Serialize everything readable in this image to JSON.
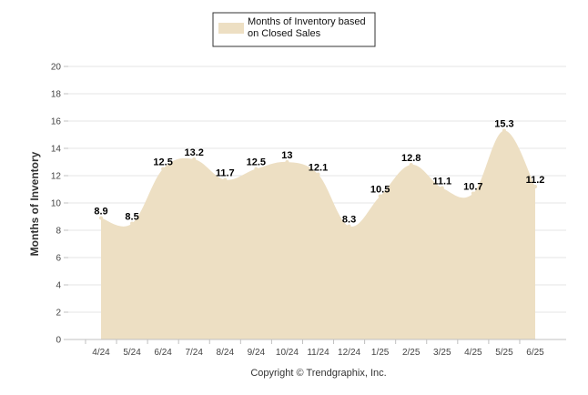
{
  "chart_data": {
    "type": "area",
    "categories": [
      "4/24",
      "5/24",
      "6/24",
      "7/24",
      "8/24",
      "9/24",
      "10/24",
      "11/24",
      "12/24",
      "1/25",
      "2/25",
      "3/25",
      "4/25",
      "5/25",
      "6/25"
    ],
    "series": [
      {
        "name": "Months of Inventory based on Closed Sales",
        "values": [
          8.9,
          8.5,
          12.5,
          13.2,
          11.7,
          12.5,
          13,
          12.1,
          8.3,
          10.5,
          12.8,
          11.1,
          10.7,
          15.3,
          11.2
        ],
        "data_labels": [
          "8.9",
          "8.5",
          "12.5",
          "13.2",
          "11.7",
          "12.5",
          "13",
          "12.1",
          "8.3",
          "10.5",
          "12.8",
          "11.1",
          "10.7",
          "15.3",
          "11.2"
        ],
        "color": "#eddfc3"
      }
    ],
    "legend": {
      "lines": [
        "Months of Inventory based",
        "on Closed Sales"
      ],
      "placement": "top-center"
    },
    "ylabel": "Months of Inventory",
    "xlabel": "",
    "ylim": [
      0,
      20
    ],
    "yticks": [
      "0",
      "2",
      "4",
      "6",
      "8",
      "10",
      "12",
      "14",
      "16",
      "18",
      "20"
    ],
    "grid": true,
    "footer": "Copyright © Trendgraphix, Inc."
  }
}
